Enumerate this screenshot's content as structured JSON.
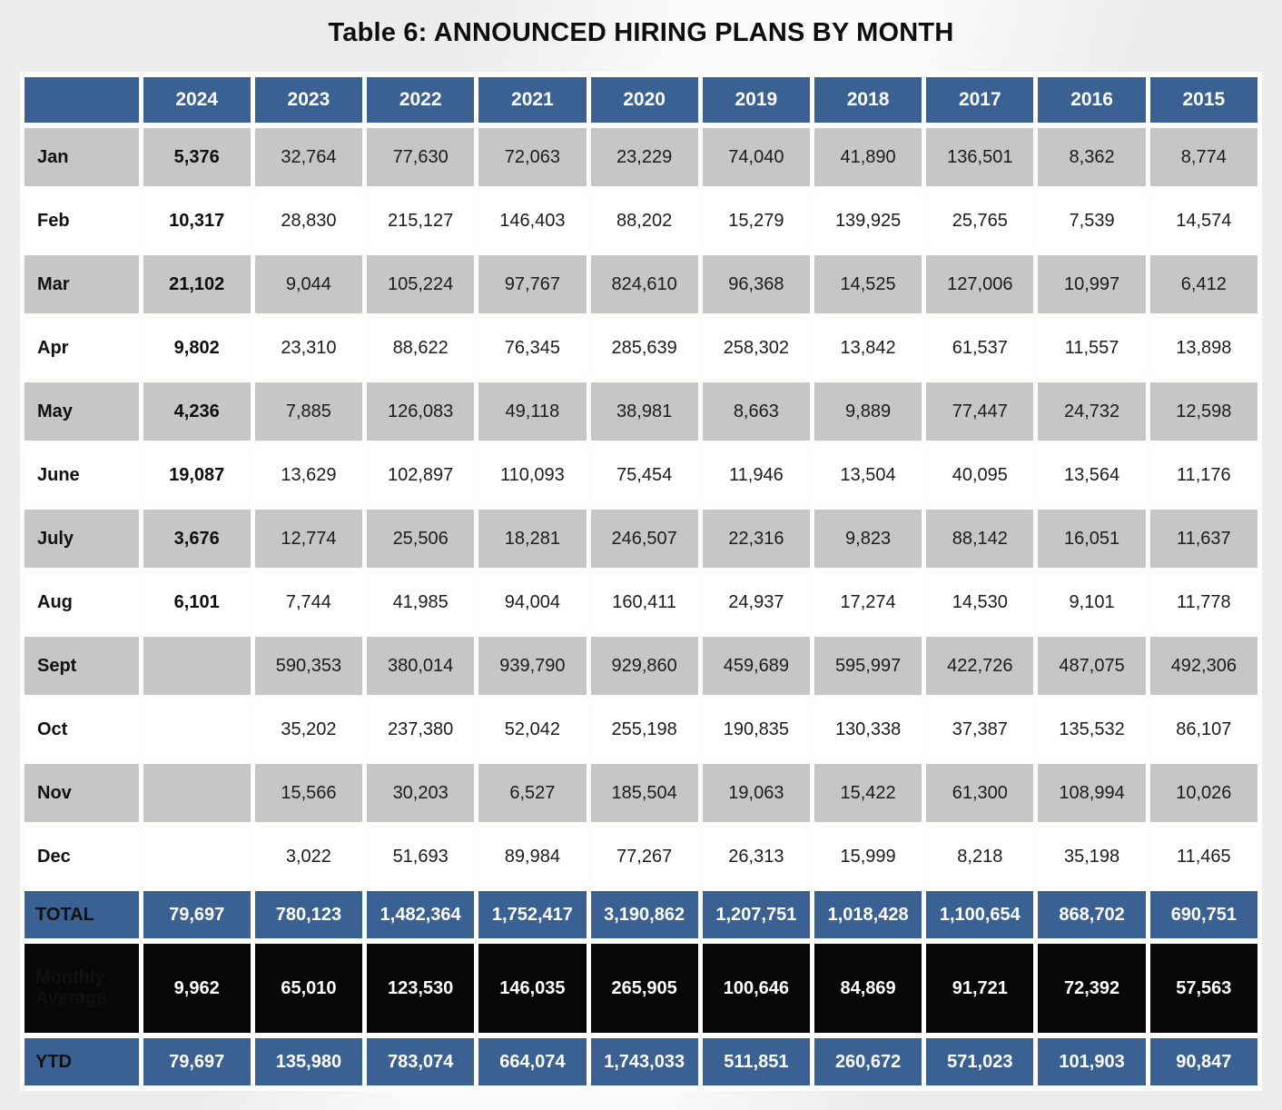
{
  "title": "Table 6: ANNOUNCED HIRING PLANS BY MONTH",
  "colors": {
    "header_blue": "#3a6191",
    "stripe_gray": "#c6c6c6",
    "stripe_white": "#ffffff",
    "average_black": "#070707",
    "header_text": "#ffffff",
    "body_text": "#1c1c1c"
  },
  "table": {
    "columns": [
      "",
      "2024",
      "2023",
      "2022",
      "2021",
      "2020",
      "2019",
      "2018",
      "2017",
      "2016",
      "2015"
    ],
    "rows": [
      {
        "label": "Jan",
        "values": [
          "5,376",
          "32,764",
          "77,630",
          "72,063",
          "23,229",
          "74,040",
          "41,890",
          "136,501",
          "8,362",
          "8,774"
        ]
      },
      {
        "label": "Feb",
        "values": [
          "10,317",
          "28,830",
          "215,127",
          "146,403",
          "88,202",
          "15,279",
          "139,925",
          "25,765",
          "7,539",
          "14,574"
        ]
      },
      {
        "label": "Mar",
        "values": [
          "21,102",
          "9,044",
          "105,224",
          "97,767",
          "824,610",
          "96,368",
          "14,525",
          "127,006",
          "10,997",
          "6,412"
        ]
      },
      {
        "label": "Apr",
        "values": [
          "9,802",
          "23,310",
          "88,622",
          "76,345",
          "285,639",
          "258,302",
          "13,842",
          "61,537",
          "11,557",
          "13,898"
        ]
      },
      {
        "label": "May",
        "values": [
          "4,236",
          "7,885",
          "126,083",
          "49,118",
          "38,981",
          "8,663",
          "9,889",
          "77,447",
          "24,732",
          "12,598"
        ]
      },
      {
        "label": "June",
        "values": [
          "19,087",
          "13,629",
          "102,897",
          "110,093",
          "75,454",
          "11,946",
          "13,504",
          "40,095",
          "13,564",
          "11,176"
        ]
      },
      {
        "label": "July",
        "values": [
          "3,676",
          "12,774",
          "25,506",
          "18,281",
          "246,507",
          "22,316",
          "9,823",
          "88,142",
          "16,051",
          "11,637"
        ]
      },
      {
        "label": "Aug",
        "values": [
          "6,101",
          "7,744",
          "41,985",
          "94,004",
          "160,411",
          "24,937",
          "17,274",
          "14,530",
          "9,101",
          "11,778"
        ]
      },
      {
        "label": "Sept",
        "values": [
          "",
          "590,353",
          "380,014",
          "939,790",
          "929,860",
          "459,689",
          "595,997",
          "422,726",
          "487,075",
          "492,306"
        ]
      },
      {
        "label": "Oct",
        "values": [
          "",
          "35,202",
          "237,380",
          "52,042",
          "255,198",
          "190,835",
          "130,338",
          "37,387",
          "135,532",
          "86,107"
        ]
      },
      {
        "label": "Nov",
        "values": [
          "",
          "15,566",
          "30,203",
          "6,527",
          "185,504",
          "19,063",
          "15,422",
          "61,300",
          "108,994",
          "10,026"
        ]
      },
      {
        "label": "Dec",
        "values": [
          "",
          "3,022",
          "51,693",
          "89,984",
          "77,267",
          "26,313",
          "15,999",
          "8,218",
          "35,198",
          "11,465"
        ]
      }
    ],
    "footer_rows": [
      {
        "label": "TOTAL",
        "type": "total",
        "values": [
          "79,697",
          "780,123",
          "1,482,364",
          "1,752,417",
          "3,190,862",
          "1,207,751",
          "1,018,428",
          "1,100,654",
          "868,702",
          "690,751"
        ]
      },
      {
        "label": "Monthly Average",
        "type": "avg",
        "values": [
          "9,962",
          "65,010",
          "123,530",
          "146,035",
          "265,905",
          "100,646",
          "84,869",
          "91,721",
          "72,392",
          "57,563"
        ]
      },
      {
        "label": "YTD",
        "type": "ytd",
        "values": [
          "79,697",
          "135,980",
          "783,074",
          "664,074",
          "1,743,033",
          "511,851",
          "260,672",
          "571,023",
          "101,903",
          "90,847"
        ]
      }
    ]
  }
}
